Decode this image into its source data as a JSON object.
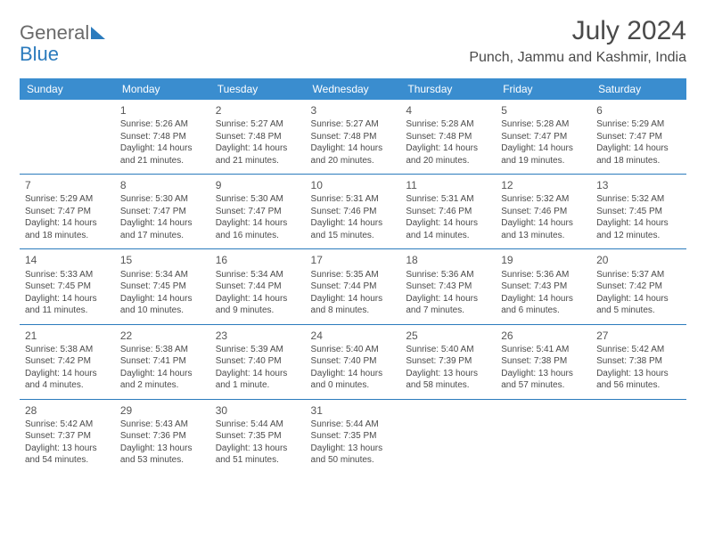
{
  "brand": {
    "part1": "General",
    "part2": "Blue"
  },
  "title": "July 2024",
  "location": "Punch, Jammu and Kashmir, India",
  "colors": {
    "header_bg": "#3a8dcf",
    "header_text": "#ffffff",
    "row_border": "#2b7bbd",
    "text": "#4a4a4a",
    "brand_gray": "#6a6a6a",
    "brand_blue": "#2b7bbd",
    "page_bg": "#ffffff"
  },
  "table": {
    "font_size_header": 12,
    "font_size_cell": 10,
    "font_size_daynum": 12
  },
  "weekdays": [
    "Sunday",
    "Monday",
    "Tuesday",
    "Wednesday",
    "Thursday",
    "Friday",
    "Saturday"
  ],
  "weeks": [
    [
      {},
      {
        "d": "1",
        "sr": "Sunrise: 5:26 AM",
        "ss": "Sunset: 7:48 PM",
        "dl1": "Daylight: 14 hours",
        "dl2": "and 21 minutes."
      },
      {
        "d": "2",
        "sr": "Sunrise: 5:27 AM",
        "ss": "Sunset: 7:48 PM",
        "dl1": "Daylight: 14 hours",
        "dl2": "and 21 minutes."
      },
      {
        "d": "3",
        "sr": "Sunrise: 5:27 AM",
        "ss": "Sunset: 7:48 PM",
        "dl1": "Daylight: 14 hours",
        "dl2": "and 20 minutes."
      },
      {
        "d": "4",
        "sr": "Sunrise: 5:28 AM",
        "ss": "Sunset: 7:48 PM",
        "dl1": "Daylight: 14 hours",
        "dl2": "and 20 minutes."
      },
      {
        "d": "5",
        "sr": "Sunrise: 5:28 AM",
        "ss": "Sunset: 7:47 PM",
        "dl1": "Daylight: 14 hours",
        "dl2": "and 19 minutes."
      },
      {
        "d": "6",
        "sr": "Sunrise: 5:29 AM",
        "ss": "Sunset: 7:47 PM",
        "dl1": "Daylight: 14 hours",
        "dl2": "and 18 minutes."
      }
    ],
    [
      {
        "d": "7",
        "sr": "Sunrise: 5:29 AM",
        "ss": "Sunset: 7:47 PM",
        "dl1": "Daylight: 14 hours",
        "dl2": "and 18 minutes."
      },
      {
        "d": "8",
        "sr": "Sunrise: 5:30 AM",
        "ss": "Sunset: 7:47 PM",
        "dl1": "Daylight: 14 hours",
        "dl2": "and 17 minutes."
      },
      {
        "d": "9",
        "sr": "Sunrise: 5:30 AM",
        "ss": "Sunset: 7:47 PM",
        "dl1": "Daylight: 14 hours",
        "dl2": "and 16 minutes."
      },
      {
        "d": "10",
        "sr": "Sunrise: 5:31 AM",
        "ss": "Sunset: 7:46 PM",
        "dl1": "Daylight: 14 hours",
        "dl2": "and 15 minutes."
      },
      {
        "d": "11",
        "sr": "Sunrise: 5:31 AM",
        "ss": "Sunset: 7:46 PM",
        "dl1": "Daylight: 14 hours",
        "dl2": "and 14 minutes."
      },
      {
        "d": "12",
        "sr": "Sunrise: 5:32 AM",
        "ss": "Sunset: 7:46 PM",
        "dl1": "Daylight: 14 hours",
        "dl2": "and 13 minutes."
      },
      {
        "d": "13",
        "sr": "Sunrise: 5:32 AM",
        "ss": "Sunset: 7:45 PM",
        "dl1": "Daylight: 14 hours",
        "dl2": "and 12 minutes."
      }
    ],
    [
      {
        "d": "14",
        "sr": "Sunrise: 5:33 AM",
        "ss": "Sunset: 7:45 PM",
        "dl1": "Daylight: 14 hours",
        "dl2": "and 11 minutes."
      },
      {
        "d": "15",
        "sr": "Sunrise: 5:34 AM",
        "ss": "Sunset: 7:45 PM",
        "dl1": "Daylight: 14 hours",
        "dl2": "and 10 minutes."
      },
      {
        "d": "16",
        "sr": "Sunrise: 5:34 AM",
        "ss": "Sunset: 7:44 PM",
        "dl1": "Daylight: 14 hours",
        "dl2": "and 9 minutes."
      },
      {
        "d": "17",
        "sr": "Sunrise: 5:35 AM",
        "ss": "Sunset: 7:44 PM",
        "dl1": "Daylight: 14 hours",
        "dl2": "and 8 minutes."
      },
      {
        "d": "18",
        "sr": "Sunrise: 5:36 AM",
        "ss": "Sunset: 7:43 PM",
        "dl1": "Daylight: 14 hours",
        "dl2": "and 7 minutes."
      },
      {
        "d": "19",
        "sr": "Sunrise: 5:36 AM",
        "ss": "Sunset: 7:43 PM",
        "dl1": "Daylight: 14 hours",
        "dl2": "and 6 minutes."
      },
      {
        "d": "20",
        "sr": "Sunrise: 5:37 AM",
        "ss": "Sunset: 7:42 PM",
        "dl1": "Daylight: 14 hours",
        "dl2": "and 5 minutes."
      }
    ],
    [
      {
        "d": "21",
        "sr": "Sunrise: 5:38 AM",
        "ss": "Sunset: 7:42 PM",
        "dl1": "Daylight: 14 hours",
        "dl2": "and 4 minutes."
      },
      {
        "d": "22",
        "sr": "Sunrise: 5:38 AM",
        "ss": "Sunset: 7:41 PM",
        "dl1": "Daylight: 14 hours",
        "dl2": "and 2 minutes."
      },
      {
        "d": "23",
        "sr": "Sunrise: 5:39 AM",
        "ss": "Sunset: 7:40 PM",
        "dl1": "Daylight: 14 hours",
        "dl2": "and 1 minute."
      },
      {
        "d": "24",
        "sr": "Sunrise: 5:40 AM",
        "ss": "Sunset: 7:40 PM",
        "dl1": "Daylight: 14 hours",
        "dl2": "and 0 minutes."
      },
      {
        "d": "25",
        "sr": "Sunrise: 5:40 AM",
        "ss": "Sunset: 7:39 PM",
        "dl1": "Daylight: 13 hours",
        "dl2": "and 58 minutes."
      },
      {
        "d": "26",
        "sr": "Sunrise: 5:41 AM",
        "ss": "Sunset: 7:38 PM",
        "dl1": "Daylight: 13 hours",
        "dl2": "and 57 minutes."
      },
      {
        "d": "27",
        "sr": "Sunrise: 5:42 AM",
        "ss": "Sunset: 7:38 PM",
        "dl1": "Daylight: 13 hours",
        "dl2": "and 56 minutes."
      }
    ],
    [
      {
        "d": "28",
        "sr": "Sunrise: 5:42 AM",
        "ss": "Sunset: 7:37 PM",
        "dl1": "Daylight: 13 hours",
        "dl2": "and 54 minutes."
      },
      {
        "d": "29",
        "sr": "Sunrise: 5:43 AM",
        "ss": "Sunset: 7:36 PM",
        "dl1": "Daylight: 13 hours",
        "dl2": "and 53 minutes."
      },
      {
        "d": "30",
        "sr": "Sunrise: 5:44 AM",
        "ss": "Sunset: 7:35 PM",
        "dl1": "Daylight: 13 hours",
        "dl2": "and 51 minutes."
      },
      {
        "d": "31",
        "sr": "Sunrise: 5:44 AM",
        "ss": "Sunset: 7:35 PM",
        "dl1": "Daylight: 13 hours",
        "dl2": "and 50 minutes."
      },
      {},
      {},
      {}
    ]
  ]
}
